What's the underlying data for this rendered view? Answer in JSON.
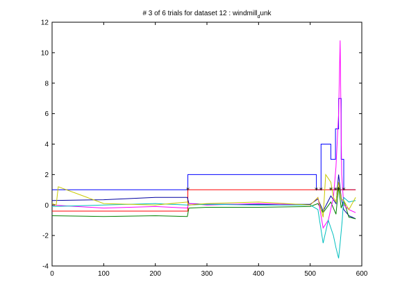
{
  "chart_data": {
    "type": "line",
    "title": "# 3 of 6 trials for dataset 12 : windmill_unk",
    "title_main": "# 3 of 6 trials for dataset 12 : windmill",
    "title_sub": "d",
    "title_tail": "unk",
    "xlabel": "",
    "ylabel": "",
    "xlim": [
      0,
      600
    ],
    "ylim": [
      -4,
      12
    ],
    "xticks": [
      0,
      100,
      200,
      300,
      400,
      500,
      600
    ],
    "yticks": [
      -4,
      -2,
      0,
      2,
      4,
      6,
      8,
      10,
      12
    ],
    "grid": false,
    "legend": "none",
    "series": [
      {
        "color": "#0000ff",
        "style": "step",
        "x": [
          0,
          263,
          263,
          512,
          512,
          521,
          521,
          540,
          540,
          549,
          549,
          555,
          555,
          560,
          560,
          565,
          565,
          588
        ],
        "y": [
          1,
          1,
          2,
          2,
          1,
          1,
          4,
          4,
          3,
          3,
          5,
          5,
          7,
          7,
          3,
          3,
          1,
          1
        ]
      },
      {
        "color": "#ff0000",
        "style": "step",
        "x": [
          0,
          263,
          263,
          588
        ],
        "y": [
          -0.4,
          -0.4,
          1,
          1
        ]
      },
      {
        "color": "#0000a0",
        "x": [
          0,
          100,
          200,
          262,
          265,
          300,
          400,
          500,
          515,
          525,
          540,
          550,
          555,
          560,
          565,
          575,
          588
        ],
        "y": [
          0.3,
          0.35,
          0.5,
          0.5,
          0.1,
          0.05,
          0.05,
          0.05,
          0.4,
          -0.4,
          0.6,
          0.1,
          2,
          0.5,
          -0.3,
          -0.7,
          -0.9
        ]
      },
      {
        "color": "#008000",
        "x": [
          0,
          100,
          200,
          262,
          265,
          300,
          400,
          500,
          515,
          525,
          540,
          550,
          555,
          560,
          565,
          575,
          588
        ],
        "y": [
          -0.7,
          -0.75,
          -0.7,
          -0.75,
          -0.2,
          -0.15,
          -0.15,
          -0.1,
          0.1,
          -0.5,
          0.2,
          -0.6,
          1.2,
          -0.2,
          0.3,
          -0.8,
          -0.9
        ]
      },
      {
        "color": "#ff00ff",
        "x": [
          0,
          100,
          200,
          262,
          265,
          300,
          400,
          500,
          515,
          525,
          535,
          545,
          550,
          555,
          558,
          561,
          565,
          575,
          588
        ],
        "y": [
          0.0,
          -0.2,
          -0.1,
          -0.2,
          0.1,
          0.0,
          0.1,
          0.0,
          0.5,
          -1.5,
          -1.0,
          0.5,
          2.5,
          6.0,
          10.8,
          2.0,
          0.0,
          -0.3,
          -0.5
        ]
      },
      {
        "color": "#00bfbf",
        "x": [
          0,
          100,
          200,
          262,
          265,
          300,
          400,
          500,
          515,
          525,
          535,
          545,
          550,
          555,
          558,
          562,
          565,
          575,
          588
        ],
        "y": [
          -0.1,
          0.0,
          0.1,
          0.0,
          0.0,
          0.05,
          0.0,
          0.0,
          -0.3,
          -2.5,
          -1.0,
          -2.0,
          -2.8,
          -3.5,
          -2.5,
          -1.0,
          0.5,
          0.2,
          0.3
        ]
      },
      {
        "color": "#c8c800",
        "x": [
          0,
          8,
          12,
          100,
          200,
          262,
          265,
          300,
          400,
          500,
          515,
          525,
          530,
          540,
          545,
          550,
          555,
          560,
          565,
          575,
          588
        ],
        "y": [
          0.1,
          0.0,
          1.2,
          0.1,
          0.0,
          0.2,
          0.0,
          0.1,
          0.2,
          0.0,
          0.5,
          -0.8,
          2.0,
          1.5,
          0.5,
          0.2,
          1.5,
          0.4,
          0.3,
          -0.3,
          0.5
        ]
      }
    ],
    "markers": {
      "symbol": "*",
      "color": "#000000",
      "x": [
        263,
        512,
        521,
        540,
        549,
        555,
        565
      ],
      "y": [
        1,
        1,
        1,
        1,
        1,
        1,
        1
      ]
    }
  }
}
